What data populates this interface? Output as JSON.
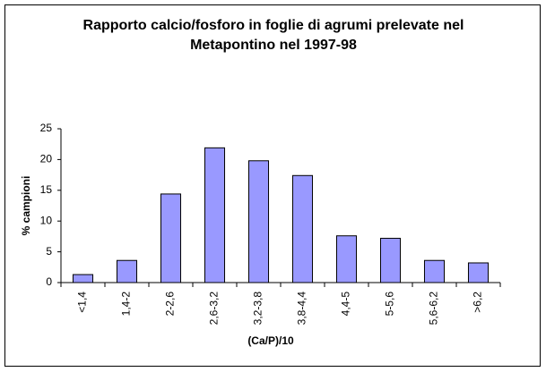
{
  "chart_data": {
    "type": "bar",
    "title": "Rapporto calcio/fosforo in foglie di agrumi prelevate nel Metapontino nel 1997-98",
    "x_label": "(Ca/P)/10",
    "y_label": "% campioni",
    "categories": [
      "<1,4",
      "1,4-2",
      "2-2,6",
      "2,6-3,2",
      "3,2-3,8",
      "3,8-4,4",
      "4,4-5",
      "5-5,6",
      "5,6-6,2",
      ">6,2"
    ],
    "values": [
      1.3,
      3.6,
      14.4,
      21.9,
      19.8,
      17.4,
      7.6,
      7.2,
      3.6,
      3.2
    ],
    "color": "#9999ff",
    "ylim": [
      0,
      25
    ],
    "yticks": [
      0,
      5,
      10,
      15,
      20,
      25
    ],
    "grid": false
  }
}
